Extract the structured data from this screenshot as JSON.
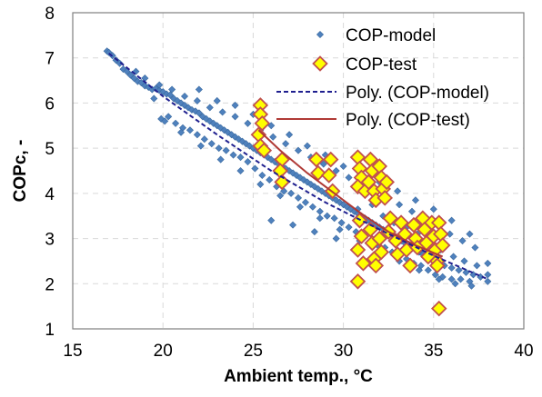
{
  "chart_data": {
    "type": "scatter",
    "xlabel": "Ambient temp., °C",
    "ylabel": "COPc, -",
    "xlim": [
      15,
      40
    ],
    "ylim": [
      1,
      8
    ],
    "xticks": [
      15,
      20,
      25,
      30,
      35,
      40
    ],
    "yticks": [
      1,
      2,
      3,
      4,
      5,
      6,
      7,
      8
    ],
    "grid": true,
    "legend_position": "top-right",
    "colors": {
      "model_marker": "#4f81bd",
      "test_fill": "#ffff00",
      "test_edge": "#c0504d",
      "model_trend": "#1f1f8f",
      "test_trend": "#b03a36"
    },
    "series": [
      {
        "name": "COP-model",
        "kind": "scatter",
        "marker": "small-diamond",
        "points": [
          [
            16.9,
            7.15
          ],
          [
            17.0,
            7.12
          ],
          [
            17.2,
            7.05
          ],
          [
            17.4,
            6.95
          ],
          [
            17.6,
            6.88
          ],
          [
            17.8,
            6.75
          ],
          [
            18.0,
            6.7
          ],
          [
            18.2,
            6.62
          ],
          [
            18.4,
            6.55
          ],
          [
            18.6,
            6.48
          ],
          [
            18.8,
            6.45
          ],
          [
            19.0,
            6.38
          ],
          [
            19.2,
            6.35
          ],
          [
            19.4,
            6.3
          ],
          [
            19.6,
            6.32
          ],
          [
            19.8,
            6.28
          ],
          [
            20.0,
            6.25
          ],
          [
            20.2,
            6.2
          ],
          [
            20.4,
            6.18
          ],
          [
            20.6,
            6.1
          ],
          [
            20.8,
            6.05
          ],
          [
            21.0,
            6.0
          ],
          [
            21.2,
            5.95
          ],
          [
            21.4,
            5.9
          ],
          [
            21.6,
            5.85
          ],
          [
            21.8,
            5.82
          ],
          [
            22.0,
            5.78
          ],
          [
            22.2,
            5.7
          ],
          [
            22.4,
            5.65
          ],
          [
            22.6,
            5.6
          ],
          [
            22.8,
            5.55
          ],
          [
            23.0,
            5.5
          ],
          [
            23.2,
            5.45
          ],
          [
            23.4,
            5.4
          ],
          [
            23.6,
            5.35
          ],
          [
            23.8,
            5.3
          ],
          [
            24.0,
            5.25
          ],
          [
            24.2,
            5.2
          ],
          [
            24.4,
            5.15
          ],
          [
            24.6,
            5.1
          ],
          [
            24.8,
            5.05
          ],
          [
            25.0,
            5.0
          ],
          [
            25.2,
            4.95
          ],
          [
            25.4,
            4.9
          ],
          [
            25.6,
            4.85
          ],
          [
            25.8,
            4.8
          ],
          [
            26.0,
            4.75
          ],
          [
            26.2,
            4.7
          ],
          [
            26.4,
            4.65
          ],
          [
            26.6,
            4.6
          ],
          [
            26.8,
            4.55
          ],
          [
            27.0,
            4.5
          ],
          [
            27.2,
            4.45
          ],
          [
            27.4,
            4.4
          ],
          [
            27.6,
            4.35
          ],
          [
            27.8,
            4.3
          ],
          [
            28.0,
            4.25
          ],
          [
            28.2,
            4.2
          ],
          [
            28.4,
            4.15
          ],
          [
            28.6,
            4.1
          ],
          [
            28.8,
            4.05
          ],
          [
            29.0,
            4.0
          ],
          [
            29.2,
            3.95
          ],
          [
            29.4,
            3.9
          ],
          [
            29.6,
            3.85
          ],
          [
            29.8,
            3.8
          ],
          [
            30.0,
            3.75
          ],
          [
            30.2,
            3.7
          ],
          [
            30.4,
            3.65
          ],
          [
            30.6,
            3.6
          ],
          [
            30.8,
            3.55
          ],
          [
            31.0,
            3.5
          ],
          [
            31.2,
            3.45
          ],
          [
            31.4,
            3.4
          ],
          [
            31.6,
            3.35
          ],
          [
            31.8,
            3.3
          ],
          [
            32.0,
            3.25
          ],
          [
            32.2,
            3.2
          ],
          [
            32.4,
            3.15
          ],
          [
            32.6,
            3.1
          ],
          [
            32.8,
            3.05
          ],
          [
            33.0,
            3.0
          ],
          [
            33.2,
            2.95
          ],
          [
            33.4,
            2.9
          ],
          [
            33.6,
            2.85
          ],
          [
            33.8,
            2.8
          ],
          [
            34.0,
            2.75
          ],
          [
            34.2,
            2.7
          ],
          [
            34.4,
            2.65
          ],
          [
            34.6,
            2.6
          ],
          [
            34.8,
            2.55
          ],
          [
            35.0,
            2.5
          ],
          [
            35.3,
            2.45
          ],
          [
            35.6,
            2.4
          ],
          [
            36.0,
            2.35
          ],
          [
            36.4,
            2.3
          ],
          [
            36.8,
            2.25
          ],
          [
            37.2,
            2.2
          ],
          [
            37.6,
            2.15
          ],
          [
            38.0,
            2.2
          ],
          [
            18.5,
            6.7
          ],
          [
            19.0,
            6.55
          ],
          [
            19.5,
            6.1
          ],
          [
            19.9,
            5.65
          ],
          [
            20.3,
            5.7
          ],
          [
            20.7,
            5.55
          ],
          [
            21.1,
            5.45
          ],
          [
            21.5,
            5.4
          ],
          [
            21.9,
            5.3
          ],
          [
            22.3,
            5.2
          ],
          [
            22.7,
            5.1
          ],
          [
            23.1,
            5.0
          ],
          [
            23.5,
            4.95
          ],
          [
            23.9,
            4.85
          ],
          [
            24.3,
            4.8
          ],
          [
            24.7,
            4.7
          ],
          [
            25.1,
            4.55
          ],
          [
            25.5,
            4.4
          ],
          [
            25.9,
            4.3
          ],
          [
            26.3,
            4.15
          ],
          [
            26.7,
            4.05
          ],
          [
            27.1,
            4.0
          ],
          [
            27.5,
            3.9
          ],
          [
            27.9,
            3.8
          ],
          [
            28.3,
            3.7
          ],
          [
            28.7,
            3.6
          ],
          [
            29.1,
            3.5
          ],
          [
            29.5,
            3.45
          ],
          [
            29.9,
            3.35
          ],
          [
            30.3,
            3.25
          ],
          [
            30.7,
            3.15
          ],
          [
            31.1,
            3.05
          ],
          [
            31.5,
            2.95
          ],
          [
            31.9,
            2.85
          ],
          [
            32.3,
            2.8
          ],
          [
            32.7,
            2.7
          ],
          [
            33.1,
            2.6
          ],
          [
            33.5,
            2.55
          ],
          [
            33.9,
            2.45
          ],
          [
            34.3,
            2.4
          ],
          [
            34.7,
            2.3
          ],
          [
            35.1,
            2.2
          ],
          [
            35.5,
            2.15
          ],
          [
            36.0,
            2.1
          ],
          [
            36.5,
            2.1
          ],
          [
            37.0,
            2.05
          ],
          [
            19.8,
            6.4
          ],
          [
            20.5,
            6.3
          ],
          [
            21.2,
            6.15
          ],
          [
            21.9,
            6.05
          ],
          [
            22.6,
            5.9
          ],
          [
            23.3,
            5.8
          ],
          [
            24.0,
            5.7
          ],
          [
            24.7,
            5.55
          ],
          [
            25.4,
            5.4
          ],
          [
            26.1,
            5.25
          ],
          [
            26.8,
            5.1
          ],
          [
            27.5,
            4.95
          ],
          [
            28.2,
            4.8
          ],
          [
            28.9,
            4.65
          ],
          [
            29.6,
            4.5
          ],
          [
            30.3,
            4.35
          ],
          [
            31.0,
            4.2
          ],
          [
            31.7,
            4.05
          ],
          [
            32.4,
            3.9
          ],
          [
            33.1,
            3.75
          ],
          [
            33.8,
            3.6
          ],
          [
            34.5,
            3.45
          ],
          [
            35.2,
            3.3
          ],
          [
            35.9,
            3.1
          ],
          [
            36.6,
            2.95
          ],
          [
            37.3,
            2.8
          ],
          [
            38.0,
            2.45
          ],
          [
            22.0,
            6.3
          ],
          [
            23.0,
            6.05
          ],
          [
            24.0,
            5.95
          ],
          [
            25.0,
            5.75
          ],
          [
            26.0,
            5.5
          ],
          [
            27.0,
            5.3
          ],
          [
            28.0,
            5.05
          ],
          [
            29.0,
            4.85
          ],
          [
            30.0,
            4.6
          ],
          [
            31.0,
            4.45
          ],
          [
            32.0,
            4.25
          ],
          [
            33.0,
            4.05
          ],
          [
            34.0,
            3.85
          ],
          [
            35.0,
            3.65
          ],
          [
            36.0,
            3.4
          ],
          [
            37.0,
            3.1
          ],
          [
            20.1,
            5.6
          ],
          [
            21.0,
            5.35
          ],
          [
            22.1,
            5.05
          ],
          [
            23.2,
            4.75
          ],
          [
            24.3,
            4.5
          ],
          [
            25.4,
            4.2
          ],
          [
            26.5,
            3.95
          ],
          [
            27.6,
            3.7
          ],
          [
            28.7,
            3.45
          ],
          [
            29.8,
            3.2
          ],
          [
            30.9,
            2.95
          ],
          [
            32.0,
            2.7
          ],
          [
            33.1,
            2.5
          ],
          [
            34.2,
            2.3
          ],
          [
            35.3,
            2.1
          ],
          [
            36.2,
            2.0
          ],
          [
            37.1,
            1.95
          ],
          [
            38.0,
            2.05
          ],
          [
            26.0,
            3.4
          ],
          [
            27.2,
            3.3
          ],
          [
            28.4,
            3.15
          ],
          [
            29.6,
            3.0
          ],
          [
            30.8,
            3.65
          ],
          [
            31.6,
            3.75
          ],
          [
            32.2,
            3.5
          ],
          [
            32.8,
            3.35
          ],
          [
            33.5,
            3.25
          ],
          [
            34.1,
            3.1
          ],
          [
            34.8,
            2.9
          ],
          [
            35.4,
            2.75
          ],
          [
            36.1,
            2.6
          ],
          [
            36.7,
            2.5
          ],
          [
            37.4,
            2.4
          ]
        ],
        "trend": {
          "name": "Poly. (COP-model)",
          "style": "dashed",
          "points": [
            [
              17,
              7.1
            ],
            [
              20,
              6.15
            ],
            [
              23,
              5.3
            ],
            [
              26,
              4.5
            ],
            [
              29,
              3.8
            ],
            [
              32,
              3.2
            ],
            [
              35,
              2.62
            ],
            [
              38,
              2.1
            ]
          ]
        }
      },
      {
        "name": "COP-test",
        "kind": "scatter",
        "marker": "large-diamond",
        "points": [
          [
            25.4,
            5.95
          ],
          [
            25.4,
            5.75
          ],
          [
            25.5,
            5.55
          ],
          [
            25.3,
            5.3
          ],
          [
            25.4,
            5.05
          ],
          [
            25.6,
            4.95
          ],
          [
            26.6,
            4.75
          ],
          [
            26.5,
            4.5
          ],
          [
            26.6,
            4.25
          ],
          [
            28.5,
            4.75
          ],
          [
            28.6,
            4.45
          ],
          [
            29.3,
            4.75
          ],
          [
            29.2,
            4.4
          ],
          [
            29.4,
            4.05
          ],
          [
            30.8,
            4.8
          ],
          [
            30.9,
            4.55
          ],
          [
            31.0,
            4.35
          ],
          [
            30.8,
            4.15
          ],
          [
            31.2,
            4.05
          ],
          [
            31.5,
            4.75
          ],
          [
            31.6,
            4.5
          ],
          [
            31.4,
            4.25
          ],
          [
            31.7,
            4.05
          ],
          [
            31.8,
            3.85
          ],
          [
            32.0,
            4.6
          ],
          [
            32.1,
            4.35
          ],
          [
            32.2,
            4.1
          ],
          [
            32.3,
            3.9
          ],
          [
            32.4,
            4.25
          ],
          [
            30.9,
            3.4
          ],
          [
            31.0,
            3.05
          ],
          [
            30.8,
            2.75
          ],
          [
            31.1,
            2.45
          ],
          [
            30.8,
            2.05
          ],
          [
            31.5,
            3.2
          ],
          [
            31.6,
            2.9
          ],
          [
            31.7,
            2.55
          ],
          [
            31.8,
            2.4
          ],
          [
            32.0,
            3.0
          ],
          [
            32.1,
            2.7
          ],
          [
            32.6,
            3.45
          ],
          [
            32.5,
            3.15
          ],
          [
            32.9,
            2.95
          ],
          [
            33.0,
            2.65
          ],
          [
            33.2,
            3.35
          ],
          [
            33.4,
            3.1
          ],
          [
            33.5,
            2.75
          ],
          [
            33.7,
            2.4
          ],
          [
            33.9,
            3.3
          ],
          [
            34.0,
            3.0
          ],
          [
            34.1,
            2.8
          ],
          [
            34.4,
            3.45
          ],
          [
            34.5,
            3.2
          ],
          [
            34.6,
            2.9
          ],
          [
            34.7,
            2.6
          ],
          [
            34.9,
            3.35
          ],
          [
            35.0,
            3.05
          ],
          [
            35.1,
            2.75
          ],
          [
            35.2,
            2.5
          ],
          [
            35.3,
            3.35
          ],
          [
            35.4,
            3.1
          ],
          [
            35.5,
            2.85
          ],
          [
            35.2,
            2.4
          ],
          [
            35.3,
            1.45
          ]
        ],
        "trend": {
          "name": "Poly. (COP-test)",
          "style": "solid",
          "points": [
            [
              25.3,
              5.4
            ],
            [
              26.5,
              4.95
            ],
            [
              28.0,
              4.45
            ],
            [
              29.5,
              4.0
            ],
            [
              31.0,
              3.55
            ],
            [
              32.5,
              3.15
            ],
            [
              34.0,
              2.85
            ],
            [
              35.5,
              2.6
            ]
          ]
        }
      }
    ]
  }
}
